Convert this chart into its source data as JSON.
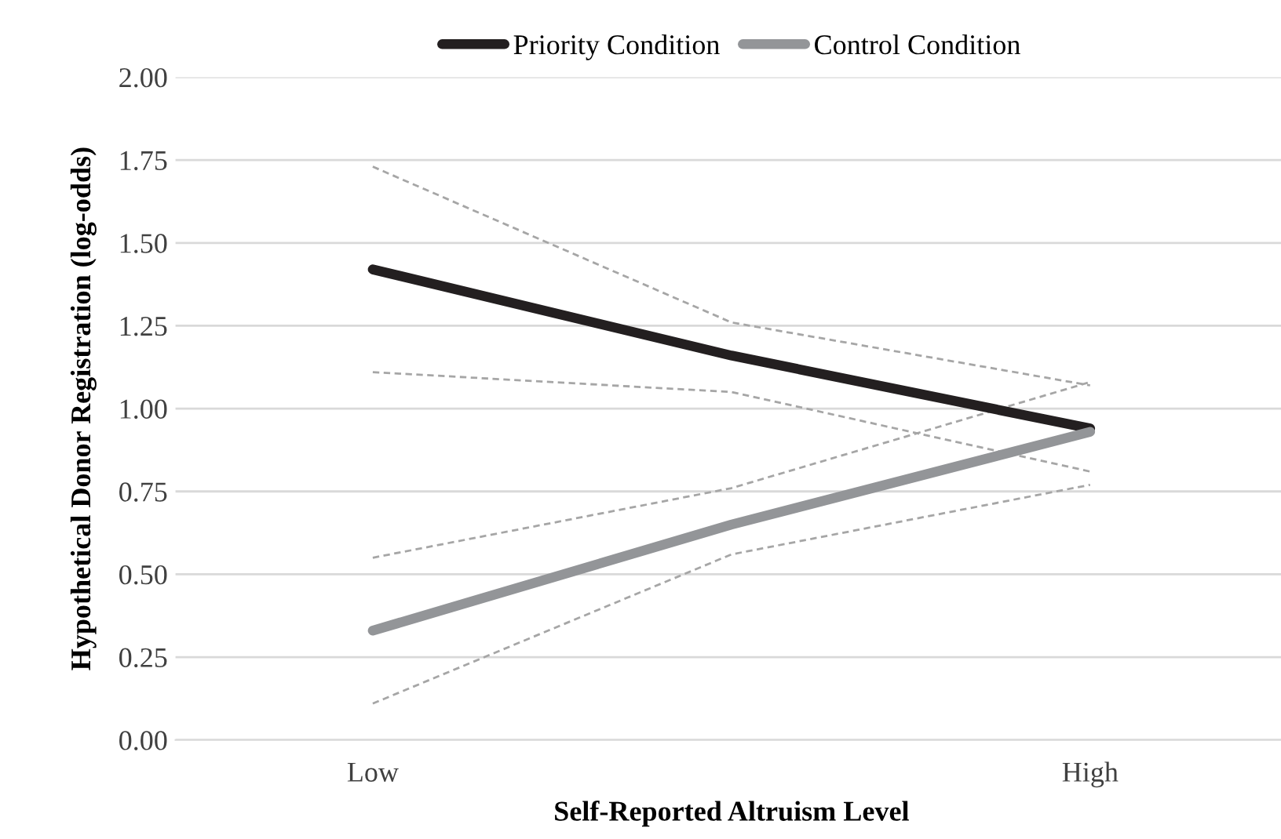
{
  "chart_data": {
    "type": "line",
    "xlabel": "Self-Reported Altruism Level",
    "ylabel": "Hypothetical Donor Registration (log-odds)",
    "categories": [
      "Low",
      null,
      "High"
    ],
    "series": [
      {
        "name": "Priority Condition",
        "color": "#231f20",
        "values": [
          1.42,
          1.16,
          0.94
        ]
      },
      {
        "name": "Control Condition",
        "color": "#939598",
        "values": [
          0.33,
          0.65,
          0.93
        ]
      },
      {
        "color": "#a6a6a6",
        "line_style": "dashed",
        "values": [
          1.73,
          1.26,
          1.07
        ]
      },
      {
        "color": "#a6a6a6",
        "line_style": "dashed",
        "values": [
          1.11,
          1.05,
          0.81
        ]
      },
      {
        "color": "#a6a6a6",
        "line_style": "dashed",
        "values": [
          0.55,
          0.76,
          1.08
        ]
      },
      {
        "color": "#a6a6a6",
        "line_style": "dashed",
        "values": [
          0.11,
          0.56,
          0.77
        ]
      }
    ],
    "ylim": [
      0,
      2
    ],
    "yticks": [
      {
        "value": 0,
        "label": "0.00"
      },
      {
        "value": 0.25,
        "label": "0.25"
      },
      {
        "value": 0.5,
        "label": "0.50"
      },
      {
        "value": 0.75,
        "label": "0.75"
      },
      {
        "value": 1,
        "label": "1.00"
      },
      {
        "value": 1.25,
        "label": "1.25"
      },
      {
        "value": 1.5,
        "label": "1.50"
      },
      {
        "value": 1.75,
        "label": "1.75"
      },
      {
        "value": 2,
        "label": "2.00"
      }
    ],
    "grid": "y",
    "legend": "top",
    "marker": "none",
    "line_style": "solid"
  }
}
